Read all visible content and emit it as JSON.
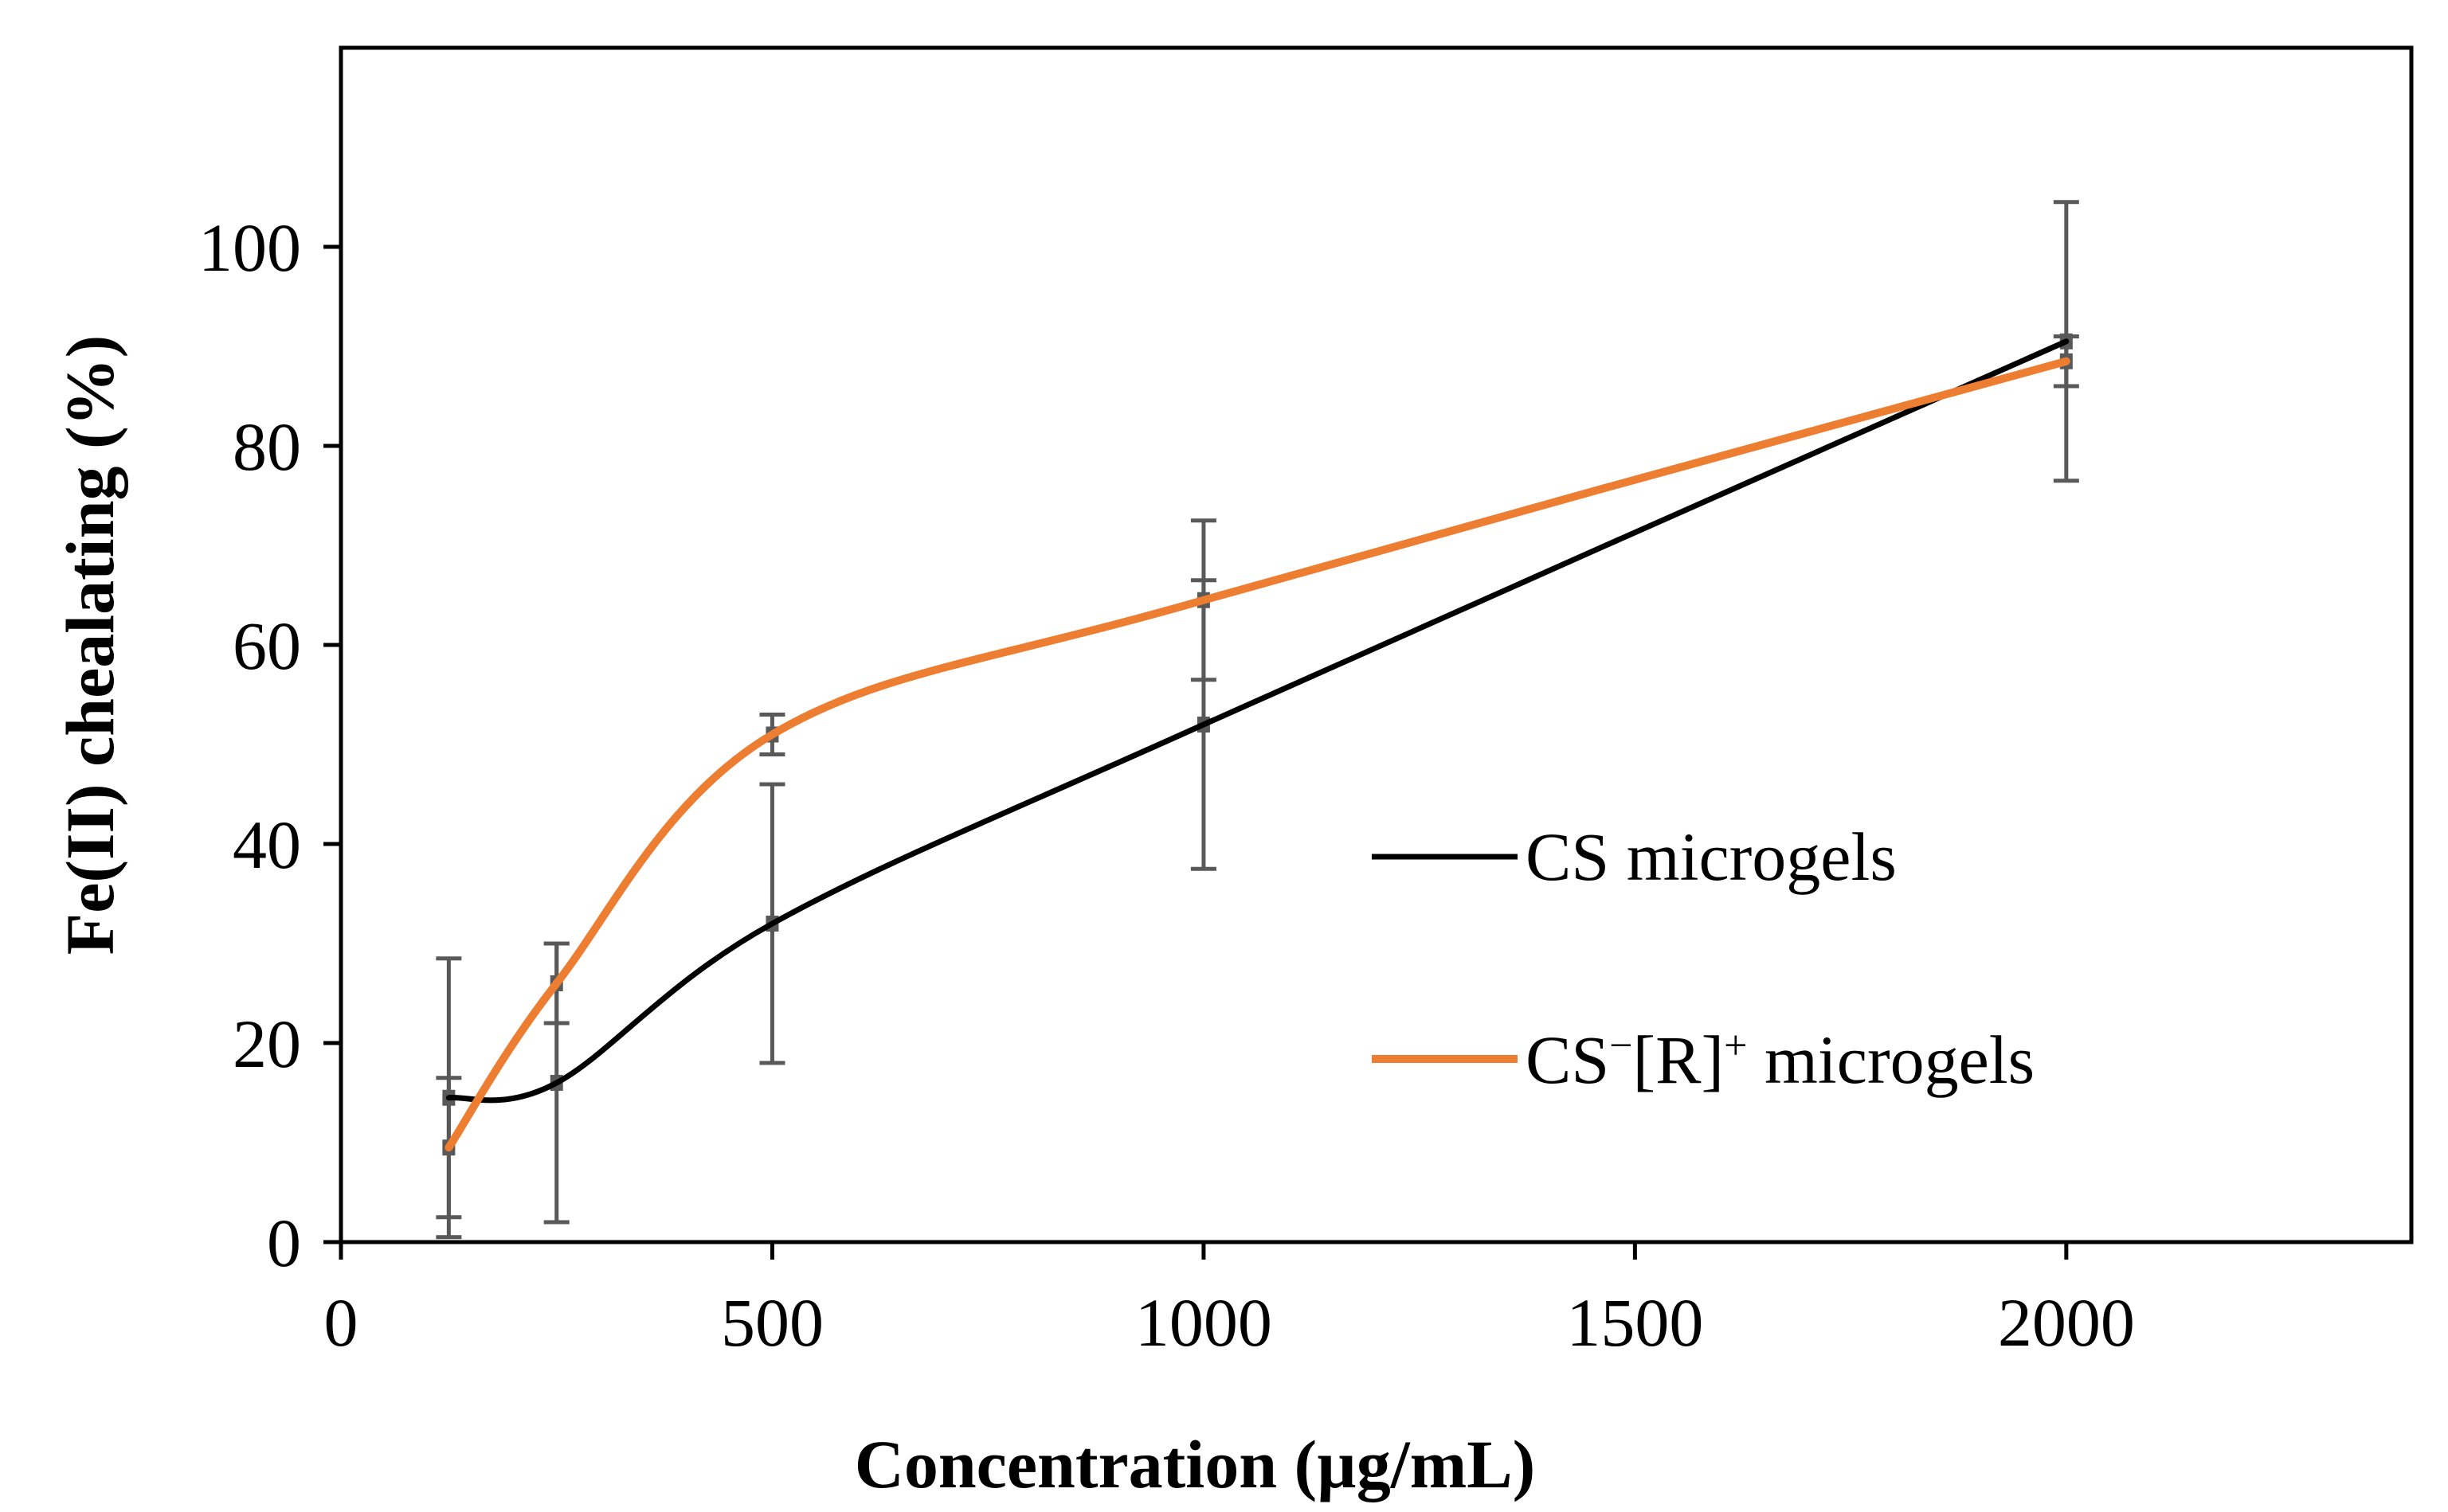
{
  "chart_data": {
    "type": "line",
    "title": "",
    "xlabel": "Concentration (µg/mL)",
    "ylabel": "Fe(II) chealating (%)",
    "xlim": [
      0,
      2400
    ],
    "ylim": [
      0,
      120
    ],
    "xticks": [
      0,
      500,
      1000,
      1500,
      2000
    ],
    "yticks": [
      0,
      20,
      40,
      60,
      80,
      100
    ],
    "xtick_labels": [
      "0",
      "500",
      "1000",
      "1500",
      "2000"
    ],
    "ytick_labels": [
      "0",
      "20",
      "40",
      "60",
      "80",
      "100"
    ],
    "grid": false,
    "legend_position": "right",
    "smooth": true,
    "x": [
      125,
      250,
      500,
      1000,
      2000
    ],
    "series": [
      {
        "name": "CS microgels",
        "color": "#000000",
        "values": [
          14.5,
          16,
          32,
          52,
          90.5
        ],
        "error": [
          14,
          14,
          14,
          14.5,
          14
        ]
      },
      {
        "name": "CS⁻[R]⁺ microgels",
        "name_parts": [
          "CS",
          "−",
          "[R]",
          "+",
          " microgels"
        ],
        "color": "#ED7D31",
        "values": [
          9.5,
          26,
          51,
          64.5,
          88.5
        ],
        "error": [
          7,
          4,
          2,
          8,
          2.5
        ]
      }
    ],
    "errorbar_color": "#595959"
  }
}
